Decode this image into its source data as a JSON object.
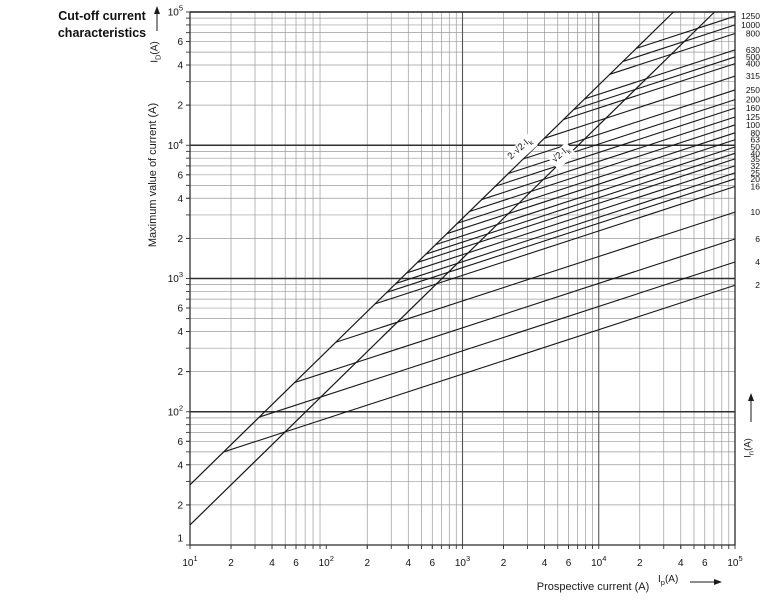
{
  "title": {
    "line1": "Cut-off current",
    "line2": "characteristics"
  },
  "y_axis": {
    "title": "Maximum value of current (A)",
    "unit_base": "I",
    "unit_sub": "D",
    "unit_suffix": "(A)"
  },
  "x_axis": {
    "title": "Prospective current (A)",
    "unit_base": "I",
    "unit_sub": "p",
    "unit_suffix": "(A)"
  },
  "right_axis": {
    "unit_base": "I",
    "unit_sub": "n",
    "unit_suffix": "(A)"
  },
  "colors": {
    "curve": "#161616",
    "grid_minor": "#9b9b9b",
    "grid_decade_vertical": "#555555",
    "grid_decade_horizontal": "#303030",
    "border": "#333333",
    "text": "#111111"
  },
  "chart_data": {
    "type": "line",
    "title": "Cut-off current characteristics",
    "xlabel": "Prospective current (A)",
    "ylabel": "Maximum value of current (A)",
    "x_scale": "log",
    "y_scale": "log",
    "xlim": [
      10,
      100000
    ],
    "ylim": [
      10,
      100000
    ],
    "grid": true,
    "x_ticks": [
      {
        "v": 10,
        "label": "10",
        "sup": "1"
      },
      {
        "v": 20,
        "label": "2"
      },
      {
        "v": 40,
        "label": "4"
      },
      {
        "v": 60,
        "label": "6"
      },
      {
        "v": 100,
        "label": "10",
        "sup": "2"
      },
      {
        "v": 200,
        "label": "2"
      },
      {
        "v": 400,
        "label": "4"
      },
      {
        "v": 600,
        "label": "6"
      },
      {
        "v": 1000,
        "label": "10",
        "sup": "3"
      },
      {
        "v": 2000,
        "label": "2"
      },
      {
        "v": 4000,
        "label": "4"
      },
      {
        "v": 6000,
        "label": "6"
      },
      {
        "v": 10000,
        "label": "10",
        "sup": "4"
      },
      {
        "v": 20000,
        "label": "2"
      },
      {
        "v": 40000,
        "label": "4"
      },
      {
        "v": 60000,
        "label": "6"
      },
      {
        "v": 100000,
        "label": "10",
        "sup": "5"
      }
    ],
    "y_ticks": [
      {
        "v": 100000,
        "label": "10",
        "sup": "5"
      },
      {
        "v": 60000,
        "label": "6"
      },
      {
        "v": 40000,
        "label": "4"
      },
      {
        "v": 20000,
        "label": "2"
      },
      {
        "v": 10000,
        "label": "10",
        "sup": "4"
      },
      {
        "v": 6000,
        "label": "6"
      },
      {
        "v": 4000,
        "label": "4"
      },
      {
        "v": 2000,
        "label": "2"
      },
      {
        "v": 1000,
        "label": "10",
        "sup": "3"
      },
      {
        "v": 600,
        "label": "6"
      },
      {
        "v": 400,
        "label": "4"
      },
      {
        "v": 200,
        "label": "2"
      },
      {
        "v": 100,
        "label": "10",
        "sup": "2"
      },
      {
        "v": 60,
        "label": "6"
      },
      {
        "v": 40,
        "label": "4"
      },
      {
        "v": 20,
        "label": "2"
      },
      {
        "v": 10,
        "label": "1",
        "dy": -7
      }
    ],
    "reference_lines": [
      {
        "label_prefix": "2·√2·I",
        "label_sub": "k",
        "multiplier": 2.8284
      },
      {
        "label_prefix": "√2·I",
        "label_sub": "k",
        "multiplier": 1.4142
      }
    ],
    "curve_model": {
      "log_slope": 0.3333,
      "branch_envelope_multiplier": 2.8284
    },
    "series": [
      {
        "rating": "1250",
        "cutoff_at_100kA": 93000
      },
      {
        "rating": "1000",
        "cutoff_at_100kA": 80000
      },
      {
        "rating": "800",
        "cutoff_at_100kA": 69000
      },
      {
        "rating": "630",
        "cutoff_at_100kA": 52000
      },
      {
        "rating": "500",
        "cutoff_at_100kA": 46000
      },
      {
        "rating": "400",
        "cutoff_at_100kA": 41000
      },
      {
        "rating": "315",
        "cutoff_at_100kA": 33000
      },
      {
        "rating": "250",
        "cutoff_at_100kA": 26000
      },
      {
        "rating": "200",
        "cutoff_at_100kA": 22000
      },
      {
        "rating": "160",
        "cutoff_at_100kA": 19000
      },
      {
        "rating": "125",
        "cutoff_at_100kA": 16300
      },
      {
        "rating": "100",
        "cutoff_at_100kA": 14200
      },
      {
        "rating": "80",
        "cutoff_at_100kA": 12400
      },
      {
        "rating": "63",
        "cutoff_at_100kA": 11000
      },
      {
        "rating": "50",
        "cutoff_at_100kA": 9700
      },
      {
        "rating": "40",
        "cutoff_at_100kA": 8700
      },
      {
        "rating": "35",
        "cutoff_at_100kA": 7900
      },
      {
        "rating": "32",
        "cutoff_at_100kA": 7000
      },
      {
        "rating": "25",
        "cutoff_at_100kA": 6200
      },
      {
        "rating": "20",
        "cutoff_at_100kA": 5600
      },
      {
        "rating": "16",
        "cutoff_at_100kA": 4900
      },
      {
        "rating": "10",
        "cutoff_at_100kA": 3150
      },
      {
        "rating": "6",
        "cutoff_at_100kA": 1980
      },
      {
        "rating": "4",
        "cutoff_at_100kA": 1330
      },
      {
        "rating": "2",
        "cutoff_at_100kA": 890
      }
    ]
  }
}
